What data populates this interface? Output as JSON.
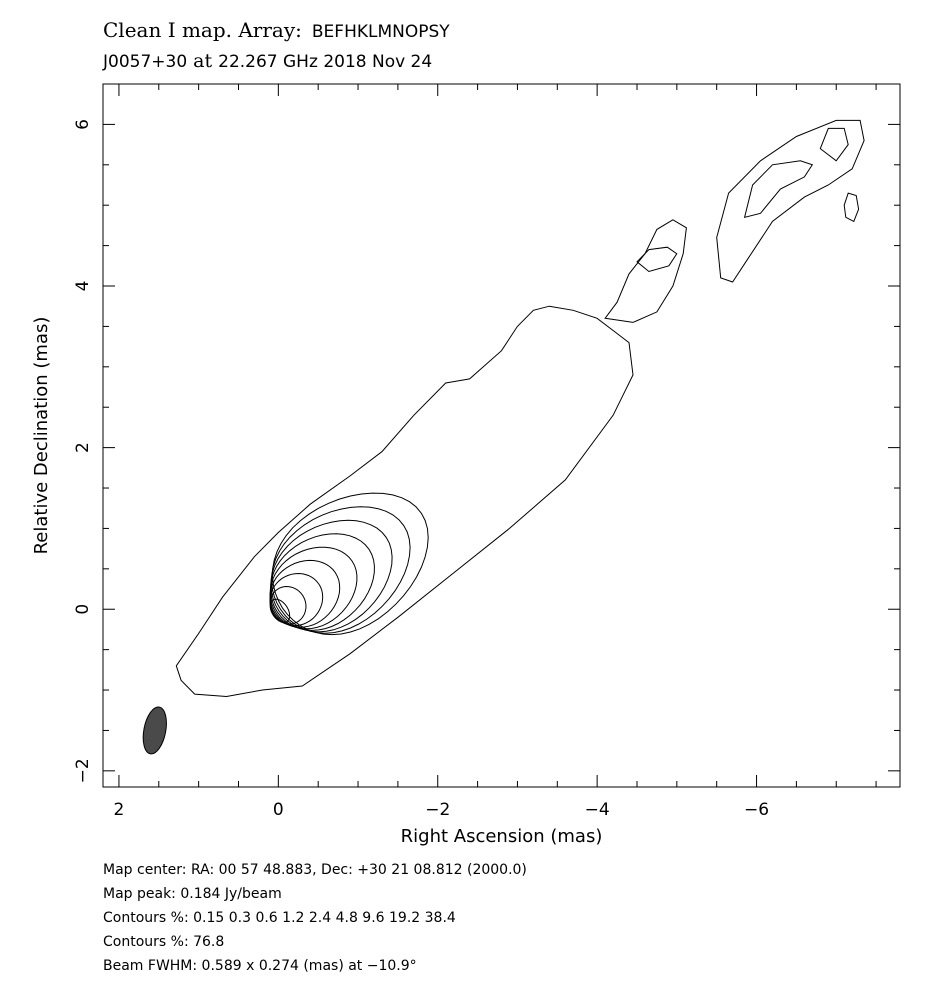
{
  "header": {
    "title_prefix": "Clean I map.  Array:",
    "array": "BEFHKLMNOPSY",
    "source": "J0057+30",
    "at_word": "at",
    "frequency": "22.267 GHz",
    "date": "2018 Nov 24"
  },
  "info": {
    "map_center": "Map center:  RA: 00 57 48.883,  Dec: +30 21 08.812 (2000.0)",
    "map_peak": "Map peak: 0.184 Jy/beam",
    "contours_1": "Contours %: 0.15 0.3 0.6 1.2 2.4 4.8 9.6 19.2 38.4",
    "contours_2": "Contours %: 76.8",
    "beam": "Beam FWHM: 0.589 x 0.274 (mas) at −10.9°"
  },
  "chart_data": {
    "type": "contour",
    "xlabel": "Right Ascension  (mas)",
    "ylabel": "Relative Declination  (mas)",
    "xlim": [
      2.2,
      -7.8
    ],
    "ylim": [
      -2.2,
      6.5
    ],
    "x_ticks": [
      2,
      0,
      -2,
      -4,
      -6
    ],
    "x_tick_labels": [
      "2",
      "0",
      "−2",
      "−4",
      "−6"
    ],
    "y_ticks": [
      -2,
      0,
      2,
      4,
      6
    ],
    "y_tick_labels": [
      "−2",
      "0",
      "2",
      "4",
      "6"
    ],
    "contour_levels_percent": [
      0.15,
      0.3,
      0.6,
      1.2,
      2.4,
      4.8,
      9.6,
      19.2,
      38.4,
      76.8
    ],
    "peak_jy_per_beam": 0.184,
    "beam": {
      "x": 1.55,
      "y": -1.5,
      "major_mas": 0.589,
      "minor_mas": 0.274,
      "pa_deg": -10.9,
      "color": "#4a4a4a"
    },
    "line_color": "#000000",
    "contours": [
      {
        "name": "jet-envelope",
        "points": [
          [
            1.28,
            -0.7
          ],
          [
            1.22,
            -0.88
          ],
          [
            1.05,
            -1.05
          ],
          [
            0.65,
            -1.08
          ],
          [
            0.2,
            -1.0
          ],
          [
            -0.3,
            -0.95
          ],
          [
            -0.9,
            -0.55
          ],
          [
            -1.5,
            -0.1
          ],
          [
            -2.2,
            0.45
          ],
          [
            -2.9,
            1.0
          ],
          [
            -3.6,
            1.6
          ],
          [
            -4.2,
            2.4
          ],
          [
            -4.45,
            2.9
          ],
          [
            -4.4,
            3.3
          ],
          [
            -4.2,
            3.45
          ],
          [
            -4.0,
            3.6
          ],
          [
            -3.7,
            3.7
          ],
          [
            -3.4,
            3.75
          ],
          [
            -3.2,
            3.7
          ],
          [
            -3.0,
            3.5
          ],
          [
            -2.8,
            3.2
          ],
          [
            -2.4,
            2.85
          ],
          [
            -2.1,
            2.8
          ],
          [
            -1.7,
            2.4
          ],
          [
            -1.3,
            1.95
          ],
          [
            -0.9,
            1.65
          ],
          [
            -0.4,
            1.3
          ],
          [
            0.0,
            0.95
          ],
          [
            0.3,
            0.65
          ],
          [
            0.7,
            0.15
          ],
          [
            1.0,
            -0.3
          ],
          [
            1.28,
            -0.7
          ]
        ]
      },
      {
        "name": "knot-4.5",
        "points": [
          [
            -4.1,
            3.6
          ],
          [
            -4.25,
            3.8
          ],
          [
            -4.4,
            4.15
          ],
          [
            -4.6,
            4.4
          ],
          [
            -4.75,
            4.7
          ],
          [
            -4.95,
            4.82
          ],
          [
            -5.12,
            4.72
          ],
          [
            -5.08,
            4.4
          ],
          [
            -4.95,
            4.0
          ],
          [
            -4.75,
            3.68
          ],
          [
            -4.45,
            3.55
          ],
          [
            -4.1,
            3.6
          ]
        ]
      },
      {
        "name": "knot-4.5-inner",
        "points": [
          [
            -4.5,
            4.3
          ],
          [
            -4.65,
            4.45
          ],
          [
            -4.88,
            4.48
          ],
          [
            -5.0,
            4.4
          ],
          [
            -4.9,
            4.25
          ],
          [
            -4.65,
            4.18
          ],
          [
            -4.5,
            4.3
          ]
        ]
      },
      {
        "name": "outer-jet",
        "points": [
          [
            -5.55,
            4.1
          ],
          [
            -5.5,
            4.6
          ],
          [
            -5.65,
            5.15
          ],
          [
            -6.05,
            5.55
          ],
          [
            -6.5,
            5.85
          ],
          [
            -7.0,
            6.05
          ],
          [
            -7.3,
            6.05
          ],
          [
            -7.35,
            5.8
          ],
          [
            -7.2,
            5.45
          ],
          [
            -6.9,
            5.25
          ],
          [
            -6.6,
            5.1
          ],
          [
            -6.2,
            4.8
          ],
          [
            -5.9,
            4.35
          ],
          [
            -5.7,
            4.05
          ],
          [
            -5.55,
            4.1
          ]
        ]
      },
      {
        "name": "outer-jet-inner",
        "points": [
          [
            -5.85,
            4.85
          ],
          [
            -5.95,
            5.25
          ],
          [
            -6.2,
            5.5
          ],
          [
            -6.55,
            5.55
          ],
          [
            -6.7,
            5.5
          ],
          [
            -6.6,
            5.35
          ],
          [
            -6.3,
            5.2
          ],
          [
            -6.05,
            4.9
          ],
          [
            -5.85,
            4.85
          ]
        ]
      },
      {
        "name": "outer-jet-knot",
        "points": [
          [
            -6.8,
            5.7
          ],
          [
            -6.9,
            5.95
          ],
          [
            -7.1,
            5.95
          ],
          [
            -7.15,
            5.75
          ],
          [
            -7.0,
            5.55
          ],
          [
            -6.8,
            5.7
          ]
        ]
      },
      {
        "name": "isolated-blob",
        "points": [
          [
            -7.1,
            5.0
          ],
          [
            -7.15,
            5.15
          ],
          [
            -7.25,
            5.12
          ],
          [
            -7.28,
            4.95
          ],
          [
            -7.22,
            4.8
          ],
          [
            -7.12,
            4.85
          ],
          [
            -7.1,
            5.0
          ]
        ]
      }
    ]
  }
}
